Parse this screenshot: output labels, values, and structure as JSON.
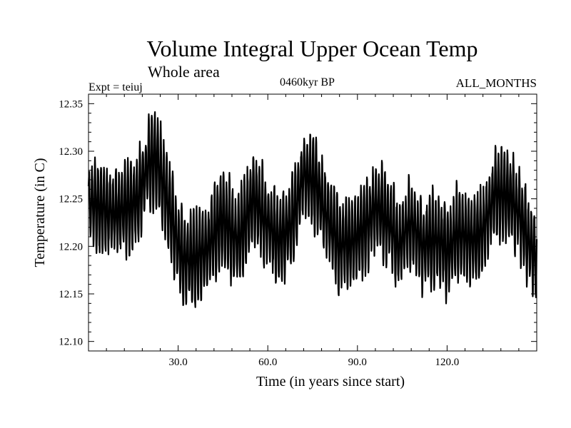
{
  "header": {
    "title": "Volume Integral Upper Ocean Temp",
    "subtitle": "Whole area",
    "experiment": "Expt = teiuj",
    "period": "0460kyr BP",
    "months": "ALL_MONTHS"
  },
  "chart_data": {
    "type": "line",
    "title": "Volume Integral Upper Ocean Temp",
    "xlabel": "Time (in years since start)",
    "ylabel": "Temperature (in C)",
    "xlim": [
      0,
      150
    ],
    "ylim": [
      12.09,
      12.36
    ],
    "xticks": [
      30,
      60,
      90,
      120
    ],
    "xtick_labels": [
      "30.0",
      "60.0",
      "90.0",
      "120.0"
    ],
    "yticks": [
      12.1,
      12.15,
      12.2,
      12.25,
      12.3,
      12.35
    ],
    "ytick_labels": [
      "12.10",
      "12.15",
      "12.20",
      "12.25",
      "12.30",
      "12.35"
    ],
    "sampling": "monthly",
    "seasonal_amplitude": 0.045,
    "annual_mean_anchors": {
      "x": [
        0,
        4,
        8,
        12,
        16,
        20,
        23,
        27,
        31,
        35,
        40,
        45,
        50,
        55,
        60,
        64,
        68,
        72,
        76,
        80,
        84,
        88,
        92,
        96,
        100,
        104,
        108,
        112,
        116,
        120,
        124,
        128,
        132,
        136,
        140,
        144,
        148,
        150
      ],
      "y": [
        12.245,
        12.24,
        12.235,
        12.238,
        12.246,
        12.285,
        12.29,
        12.24,
        12.19,
        12.185,
        12.2,
        12.23,
        12.205,
        12.25,
        12.225,
        12.205,
        12.225,
        12.275,
        12.265,
        12.23,
        12.2,
        12.205,
        12.215,
        12.24,
        12.23,
        12.2,
        12.225,
        12.2,
        12.21,
        12.195,
        12.215,
        12.205,
        12.215,
        12.255,
        12.255,
        12.235,
        12.2,
        12.185
      ]
    }
  }
}
